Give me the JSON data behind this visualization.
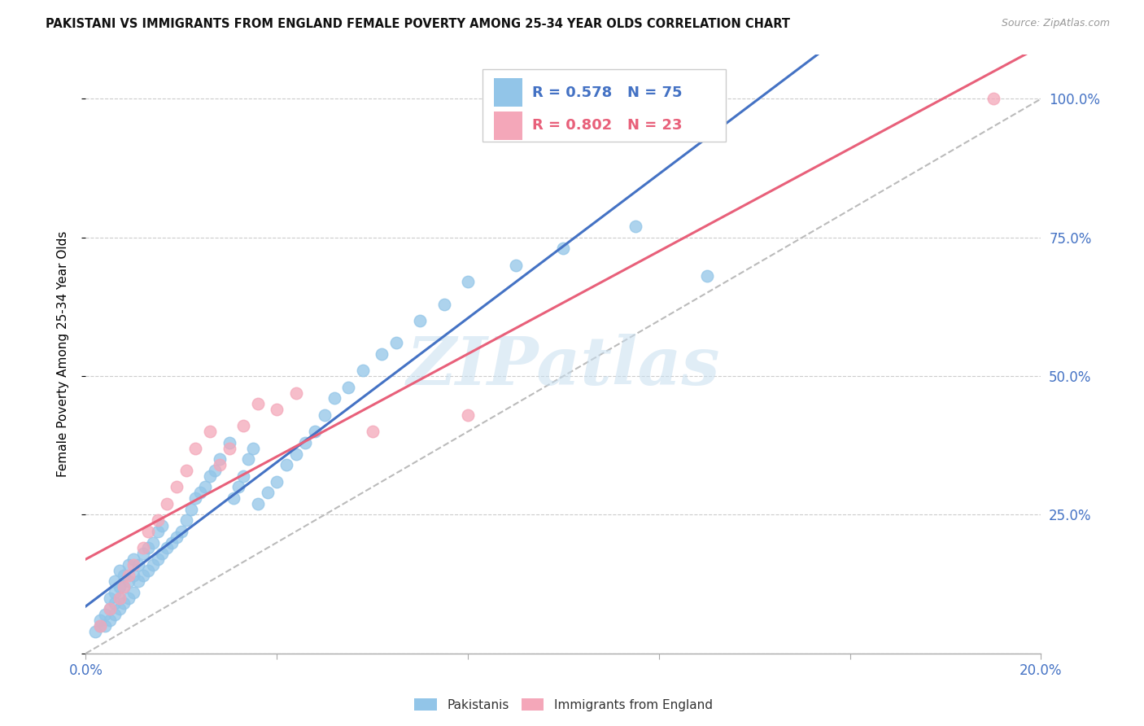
{
  "title": "PAKISTANI VS IMMIGRANTS FROM ENGLAND FEMALE POVERTY AMONG 25-34 YEAR OLDS CORRELATION CHART",
  "source": "Source: ZipAtlas.com",
  "ylabel": "Female Poverty Among 25-34 Year Olds",
  "xlim": [
    0.0,
    0.2
  ],
  "ylim": [
    0.0,
    1.08
  ],
  "right_ytick_vals": [
    0.0,
    0.25,
    0.5,
    0.75,
    1.0
  ],
  "right_yticklabels": [
    "",
    "25.0%",
    "50.0%",
    "75.0%",
    "100.0%"
  ],
  "xtick_vals": [
    0.0,
    0.04,
    0.08,
    0.12,
    0.16,
    0.2
  ],
  "xticklabels": [
    "0.0%",
    "",
    "",
    "",
    "",
    "20.0%"
  ],
  "series1_color": "#92C5E8",
  "series2_color": "#F4A7B9",
  "series1_label": "Pakistanis",
  "series2_label": "Immigrants from England",
  "legend_r1": "R = 0.578",
  "legend_n1": "N = 75",
  "legend_r2": "R = 0.802",
  "legend_n2": "N = 23",
  "regression1_color": "#4472C4",
  "regression2_color": "#E8607A",
  "reference_line_color": "#BBBBBB",
  "watermark": "ZIPatlas",
  "pakistanis_x": [
    0.002,
    0.003,
    0.003,
    0.004,
    0.004,
    0.005,
    0.005,
    0.005,
    0.006,
    0.006,
    0.006,
    0.006,
    0.007,
    0.007,
    0.007,
    0.007,
    0.008,
    0.008,
    0.008,
    0.009,
    0.009,
    0.009,
    0.01,
    0.01,
    0.01,
    0.011,
    0.011,
    0.012,
    0.012,
    0.013,
    0.013,
    0.014,
    0.014,
    0.015,
    0.015,
    0.016,
    0.016,
    0.017,
    0.018,
    0.019,
    0.02,
    0.021,
    0.022,
    0.023,
    0.024,
    0.025,
    0.026,
    0.027,
    0.028,
    0.03,
    0.031,
    0.032,
    0.033,
    0.034,
    0.035,
    0.036,
    0.038,
    0.04,
    0.042,
    0.044,
    0.046,
    0.048,
    0.05,
    0.052,
    0.055,
    0.058,
    0.062,
    0.065,
    0.07,
    0.075,
    0.08,
    0.09,
    0.1,
    0.115,
    0.13
  ],
  "pakistanis_y": [
    0.04,
    0.05,
    0.06,
    0.05,
    0.07,
    0.06,
    0.08,
    0.1,
    0.07,
    0.09,
    0.11,
    0.13,
    0.08,
    0.1,
    0.12,
    0.15,
    0.09,
    0.12,
    0.14,
    0.1,
    0.13,
    0.16,
    0.11,
    0.14,
    0.17,
    0.13,
    0.16,
    0.14,
    0.18,
    0.15,
    0.19,
    0.16,
    0.2,
    0.17,
    0.22,
    0.18,
    0.23,
    0.19,
    0.2,
    0.21,
    0.22,
    0.24,
    0.26,
    0.28,
    0.29,
    0.3,
    0.32,
    0.33,
    0.35,
    0.38,
    0.28,
    0.3,
    0.32,
    0.35,
    0.37,
    0.27,
    0.29,
    0.31,
    0.34,
    0.36,
    0.38,
    0.4,
    0.43,
    0.46,
    0.48,
    0.51,
    0.54,
    0.56,
    0.6,
    0.63,
    0.67,
    0.7,
    0.73,
    0.77,
    0.68
  ],
  "england_x": [
    0.003,
    0.005,
    0.007,
    0.008,
    0.009,
    0.01,
    0.012,
    0.013,
    0.015,
    0.017,
    0.019,
    0.021,
    0.023,
    0.026,
    0.028,
    0.03,
    0.033,
    0.036,
    0.04,
    0.044,
    0.06,
    0.08,
    0.19
  ],
  "england_y": [
    0.05,
    0.08,
    0.1,
    0.12,
    0.14,
    0.16,
    0.19,
    0.22,
    0.24,
    0.27,
    0.3,
    0.33,
    0.37,
    0.4,
    0.34,
    0.37,
    0.41,
    0.45,
    0.44,
    0.47,
    0.4,
    0.43,
    1.0
  ]
}
